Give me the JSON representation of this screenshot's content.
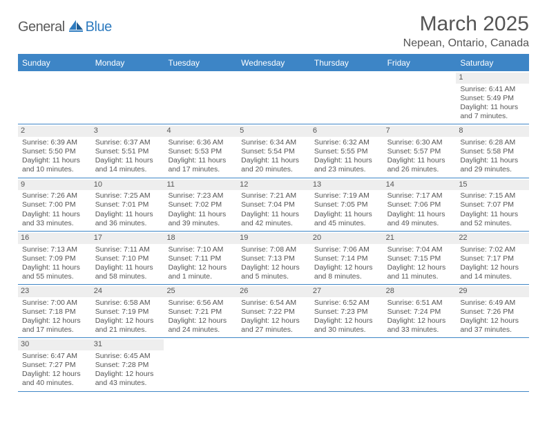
{
  "logo": {
    "part1": "General",
    "part2": "Blue"
  },
  "title": "March 2025",
  "subtitle": "Nepean, Ontario, Canada",
  "colors": {
    "header_bg": "#3d85c6",
    "header_text": "#ffffff",
    "daynum_bg": "#eeeeee",
    "text": "#555555",
    "divider": "#3d85c6"
  },
  "daysOfWeek": [
    "Sunday",
    "Monday",
    "Tuesday",
    "Wednesday",
    "Thursday",
    "Friday",
    "Saturday"
  ],
  "weeks": [
    [
      null,
      null,
      null,
      null,
      null,
      null,
      {
        "n": "1",
        "sr": "Sunrise: 6:41 AM",
        "ss": "Sunset: 5:49 PM",
        "d1": "Daylight: 11 hours",
        "d2": "and 7 minutes."
      }
    ],
    [
      {
        "n": "2",
        "sr": "Sunrise: 6:39 AM",
        "ss": "Sunset: 5:50 PM",
        "d1": "Daylight: 11 hours",
        "d2": "and 10 minutes."
      },
      {
        "n": "3",
        "sr": "Sunrise: 6:37 AM",
        "ss": "Sunset: 5:51 PM",
        "d1": "Daylight: 11 hours",
        "d2": "and 14 minutes."
      },
      {
        "n": "4",
        "sr": "Sunrise: 6:36 AM",
        "ss": "Sunset: 5:53 PM",
        "d1": "Daylight: 11 hours",
        "d2": "and 17 minutes."
      },
      {
        "n": "5",
        "sr": "Sunrise: 6:34 AM",
        "ss": "Sunset: 5:54 PM",
        "d1": "Daylight: 11 hours",
        "d2": "and 20 minutes."
      },
      {
        "n": "6",
        "sr": "Sunrise: 6:32 AM",
        "ss": "Sunset: 5:55 PM",
        "d1": "Daylight: 11 hours",
        "d2": "and 23 minutes."
      },
      {
        "n": "7",
        "sr": "Sunrise: 6:30 AM",
        "ss": "Sunset: 5:57 PM",
        "d1": "Daylight: 11 hours",
        "d2": "and 26 minutes."
      },
      {
        "n": "8",
        "sr": "Sunrise: 6:28 AM",
        "ss": "Sunset: 5:58 PM",
        "d1": "Daylight: 11 hours",
        "d2": "and 29 minutes."
      }
    ],
    [
      {
        "n": "9",
        "sr": "Sunrise: 7:26 AM",
        "ss": "Sunset: 7:00 PM",
        "d1": "Daylight: 11 hours",
        "d2": "and 33 minutes."
      },
      {
        "n": "10",
        "sr": "Sunrise: 7:25 AM",
        "ss": "Sunset: 7:01 PM",
        "d1": "Daylight: 11 hours",
        "d2": "and 36 minutes."
      },
      {
        "n": "11",
        "sr": "Sunrise: 7:23 AM",
        "ss": "Sunset: 7:02 PM",
        "d1": "Daylight: 11 hours",
        "d2": "and 39 minutes."
      },
      {
        "n": "12",
        "sr": "Sunrise: 7:21 AM",
        "ss": "Sunset: 7:04 PM",
        "d1": "Daylight: 11 hours",
        "d2": "and 42 minutes."
      },
      {
        "n": "13",
        "sr": "Sunrise: 7:19 AM",
        "ss": "Sunset: 7:05 PM",
        "d1": "Daylight: 11 hours",
        "d2": "and 45 minutes."
      },
      {
        "n": "14",
        "sr": "Sunrise: 7:17 AM",
        "ss": "Sunset: 7:06 PM",
        "d1": "Daylight: 11 hours",
        "d2": "and 49 minutes."
      },
      {
        "n": "15",
        "sr": "Sunrise: 7:15 AM",
        "ss": "Sunset: 7:07 PM",
        "d1": "Daylight: 11 hours",
        "d2": "and 52 minutes."
      }
    ],
    [
      {
        "n": "16",
        "sr": "Sunrise: 7:13 AM",
        "ss": "Sunset: 7:09 PM",
        "d1": "Daylight: 11 hours",
        "d2": "and 55 minutes."
      },
      {
        "n": "17",
        "sr": "Sunrise: 7:11 AM",
        "ss": "Sunset: 7:10 PM",
        "d1": "Daylight: 11 hours",
        "d2": "and 58 minutes."
      },
      {
        "n": "18",
        "sr": "Sunrise: 7:10 AM",
        "ss": "Sunset: 7:11 PM",
        "d1": "Daylight: 12 hours",
        "d2": "and 1 minute."
      },
      {
        "n": "19",
        "sr": "Sunrise: 7:08 AM",
        "ss": "Sunset: 7:13 PM",
        "d1": "Daylight: 12 hours",
        "d2": "and 5 minutes."
      },
      {
        "n": "20",
        "sr": "Sunrise: 7:06 AM",
        "ss": "Sunset: 7:14 PM",
        "d1": "Daylight: 12 hours",
        "d2": "and 8 minutes."
      },
      {
        "n": "21",
        "sr": "Sunrise: 7:04 AM",
        "ss": "Sunset: 7:15 PM",
        "d1": "Daylight: 12 hours",
        "d2": "and 11 minutes."
      },
      {
        "n": "22",
        "sr": "Sunrise: 7:02 AM",
        "ss": "Sunset: 7:17 PM",
        "d1": "Daylight: 12 hours",
        "d2": "and 14 minutes."
      }
    ],
    [
      {
        "n": "23",
        "sr": "Sunrise: 7:00 AM",
        "ss": "Sunset: 7:18 PM",
        "d1": "Daylight: 12 hours",
        "d2": "and 17 minutes."
      },
      {
        "n": "24",
        "sr": "Sunrise: 6:58 AM",
        "ss": "Sunset: 7:19 PM",
        "d1": "Daylight: 12 hours",
        "d2": "and 21 minutes."
      },
      {
        "n": "25",
        "sr": "Sunrise: 6:56 AM",
        "ss": "Sunset: 7:21 PM",
        "d1": "Daylight: 12 hours",
        "d2": "and 24 minutes."
      },
      {
        "n": "26",
        "sr": "Sunrise: 6:54 AM",
        "ss": "Sunset: 7:22 PM",
        "d1": "Daylight: 12 hours",
        "d2": "and 27 minutes."
      },
      {
        "n": "27",
        "sr": "Sunrise: 6:52 AM",
        "ss": "Sunset: 7:23 PM",
        "d1": "Daylight: 12 hours",
        "d2": "and 30 minutes."
      },
      {
        "n": "28",
        "sr": "Sunrise: 6:51 AM",
        "ss": "Sunset: 7:24 PM",
        "d1": "Daylight: 12 hours",
        "d2": "and 33 minutes."
      },
      {
        "n": "29",
        "sr": "Sunrise: 6:49 AM",
        "ss": "Sunset: 7:26 PM",
        "d1": "Daylight: 12 hours",
        "d2": "and 37 minutes."
      }
    ],
    [
      {
        "n": "30",
        "sr": "Sunrise: 6:47 AM",
        "ss": "Sunset: 7:27 PM",
        "d1": "Daylight: 12 hours",
        "d2": "and 40 minutes."
      },
      {
        "n": "31",
        "sr": "Sunrise: 6:45 AM",
        "ss": "Sunset: 7:28 PM",
        "d1": "Daylight: 12 hours",
        "d2": "and 43 minutes."
      },
      null,
      null,
      null,
      null,
      null
    ]
  ]
}
